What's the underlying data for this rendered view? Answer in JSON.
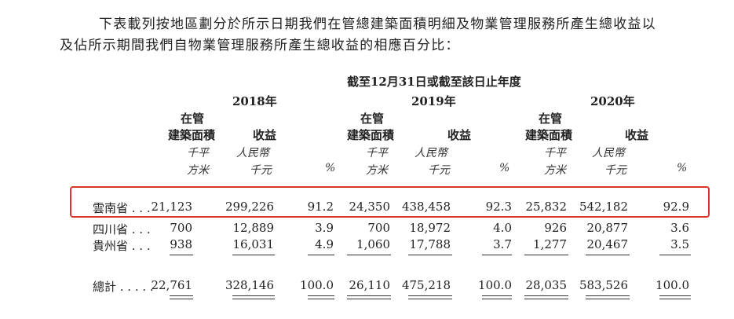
{
  "intro": {
    "line1": "下表載列按地區劃分於所示日期我們在管總建築面積明細及物業管理服務所產生總收益以",
    "line2": "及佔所示期間我們自物業管理服務所產生總收益的相應百分比："
  },
  "table": {
    "period_header": "截至12月31日或截至該日止年度",
    "years": [
      "2018年",
      "2019年",
      "2020年"
    ],
    "col_headers": {
      "gfa_line1": "在管",
      "gfa_line2": "建築面積",
      "revenue": "收益",
      "gfa_unit_line1": "千平",
      "gfa_unit_line2": "方米",
      "rev_unit_line1": "人民幣",
      "rev_unit_line2": "千元",
      "pct": "%"
    },
    "rows": [
      {
        "region": "雲南省 . . .",
        "values": [
          "21,123",
          "299,226",
          "91.2",
          "24,350",
          "438,458",
          "92.3",
          "25,832",
          "542,182",
          "92.9"
        ]
      },
      {
        "region": "四川省 . . .",
        "values": [
          "700",
          "12,889",
          "3.9",
          "700",
          "18,972",
          "4.0",
          "926",
          "20,877",
          "3.6"
        ]
      },
      {
        "region": "貴州省 . . .",
        "values": [
          "938",
          "16,031",
          "4.9",
          "1,060",
          "17,788",
          "3.7",
          "1,277",
          "20,467",
          "3.5"
        ]
      }
    ],
    "total": {
      "region": "總計 . . . . .",
      "values": [
        "22,761",
        "328,146",
        "100.0",
        "26,110",
        "475,218",
        "100.0",
        "28,035",
        "583,526",
        "100.0"
      ]
    }
  },
  "highlight_color": "#d9362b"
}
